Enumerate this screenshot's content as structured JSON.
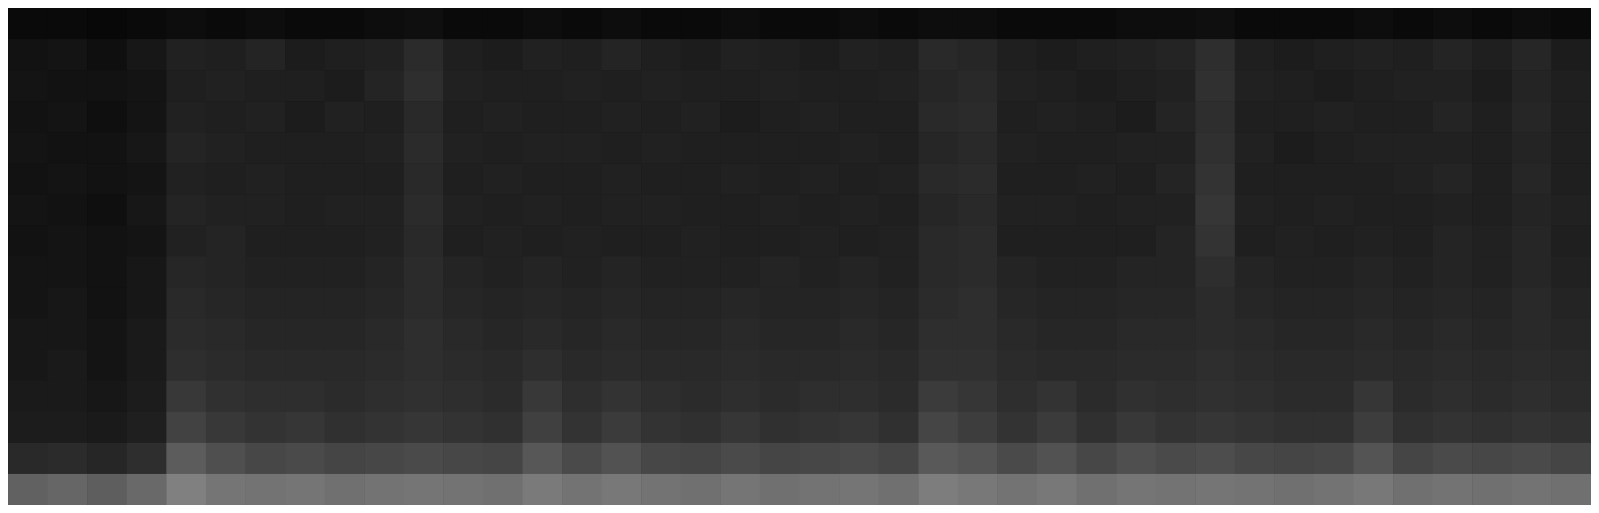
{
  "chart_data": {
    "type": "heatmap",
    "tick_labels": false,
    "zlim": [
      0,
      1
    ],
    "cells": [
      [
        0.04,
        0.04,
        0.03,
        0.04,
        0.05,
        0.04,
        0.05,
        0.04,
        0.04,
        0.05,
        0.06,
        0.04,
        0.04,
        0.05,
        0.04,
        0.05,
        0.04,
        0.04,
        0.05,
        0.04,
        0.04,
        0.05,
        0.04,
        0.05,
        0.05,
        0.04,
        0.04,
        0.04,
        0.05,
        0.05,
        0.06,
        0.04,
        0.04,
        0.04,
        0.05,
        0.04,
        0.05,
        0.04,
        0.05,
        0.04
      ],
      [
        0.07,
        0.08,
        0.06,
        0.09,
        0.13,
        0.12,
        0.14,
        0.11,
        0.12,
        0.13,
        0.17,
        0.12,
        0.11,
        0.13,
        0.12,
        0.14,
        0.12,
        0.11,
        0.13,
        0.12,
        0.11,
        0.13,
        0.12,
        0.16,
        0.15,
        0.12,
        0.11,
        0.12,
        0.13,
        0.14,
        0.18,
        0.12,
        0.11,
        0.12,
        0.13,
        0.12,
        0.14,
        0.12,
        0.15,
        0.11
      ],
      [
        0.08,
        0.07,
        0.07,
        0.08,
        0.12,
        0.13,
        0.12,
        0.12,
        0.11,
        0.14,
        0.18,
        0.13,
        0.12,
        0.12,
        0.13,
        0.12,
        0.13,
        0.12,
        0.12,
        0.13,
        0.12,
        0.12,
        0.13,
        0.15,
        0.16,
        0.13,
        0.12,
        0.11,
        0.12,
        0.13,
        0.19,
        0.13,
        0.12,
        0.11,
        0.12,
        0.13,
        0.13,
        0.11,
        0.14,
        0.12
      ],
      [
        0.07,
        0.08,
        0.06,
        0.08,
        0.13,
        0.12,
        0.13,
        0.11,
        0.13,
        0.12,
        0.16,
        0.12,
        0.13,
        0.12,
        0.12,
        0.13,
        0.12,
        0.13,
        0.11,
        0.12,
        0.13,
        0.12,
        0.12,
        0.16,
        0.17,
        0.12,
        0.13,
        0.12,
        0.11,
        0.14,
        0.18,
        0.12,
        0.12,
        0.13,
        0.12,
        0.12,
        0.14,
        0.12,
        0.15,
        0.12
      ],
      [
        0.08,
        0.07,
        0.07,
        0.09,
        0.14,
        0.13,
        0.12,
        0.12,
        0.12,
        0.13,
        0.17,
        0.13,
        0.12,
        0.13,
        0.13,
        0.12,
        0.13,
        0.12,
        0.12,
        0.12,
        0.12,
        0.13,
        0.12,
        0.15,
        0.16,
        0.13,
        0.12,
        0.12,
        0.13,
        0.13,
        0.19,
        0.13,
        0.11,
        0.12,
        0.13,
        0.13,
        0.13,
        0.12,
        0.14,
        0.12
      ],
      [
        0.07,
        0.08,
        0.07,
        0.08,
        0.13,
        0.12,
        0.13,
        0.12,
        0.12,
        0.12,
        0.16,
        0.12,
        0.13,
        0.12,
        0.12,
        0.13,
        0.12,
        0.12,
        0.13,
        0.12,
        0.13,
        0.12,
        0.13,
        0.16,
        0.17,
        0.12,
        0.12,
        0.13,
        0.12,
        0.14,
        0.2,
        0.12,
        0.12,
        0.12,
        0.12,
        0.13,
        0.14,
        0.12,
        0.15,
        0.12
      ],
      [
        0.08,
        0.07,
        0.06,
        0.09,
        0.14,
        0.13,
        0.13,
        0.12,
        0.13,
        0.13,
        0.17,
        0.13,
        0.12,
        0.13,
        0.12,
        0.13,
        0.13,
        0.12,
        0.12,
        0.13,
        0.12,
        0.13,
        0.12,
        0.15,
        0.16,
        0.13,
        0.13,
        0.12,
        0.13,
        0.13,
        0.21,
        0.13,
        0.12,
        0.13,
        0.12,
        0.12,
        0.13,
        0.12,
        0.14,
        0.13
      ],
      [
        0.07,
        0.08,
        0.07,
        0.08,
        0.13,
        0.14,
        0.12,
        0.12,
        0.12,
        0.13,
        0.16,
        0.12,
        0.13,
        0.12,
        0.13,
        0.12,
        0.12,
        0.13,
        0.12,
        0.12,
        0.13,
        0.12,
        0.13,
        0.16,
        0.17,
        0.12,
        0.12,
        0.12,
        0.12,
        0.14,
        0.2,
        0.12,
        0.13,
        0.12,
        0.13,
        0.12,
        0.14,
        0.13,
        0.15,
        0.12
      ],
      [
        0.08,
        0.08,
        0.07,
        0.09,
        0.15,
        0.14,
        0.13,
        0.13,
        0.13,
        0.14,
        0.17,
        0.14,
        0.13,
        0.14,
        0.13,
        0.14,
        0.13,
        0.13,
        0.13,
        0.14,
        0.13,
        0.14,
        0.13,
        0.16,
        0.17,
        0.14,
        0.13,
        0.13,
        0.14,
        0.14,
        0.18,
        0.14,
        0.13,
        0.13,
        0.14,
        0.13,
        0.14,
        0.13,
        0.15,
        0.13
      ],
      [
        0.08,
        0.09,
        0.07,
        0.09,
        0.16,
        0.15,
        0.14,
        0.14,
        0.14,
        0.15,
        0.17,
        0.15,
        0.14,
        0.15,
        0.14,
        0.15,
        0.14,
        0.14,
        0.15,
        0.14,
        0.14,
        0.15,
        0.14,
        0.17,
        0.18,
        0.15,
        0.14,
        0.14,
        0.15,
        0.15,
        0.17,
        0.15,
        0.14,
        0.14,
        0.15,
        0.14,
        0.15,
        0.14,
        0.16,
        0.14
      ],
      [
        0.09,
        0.09,
        0.08,
        0.1,
        0.17,
        0.16,
        0.15,
        0.15,
        0.15,
        0.16,
        0.18,
        0.16,
        0.15,
        0.16,
        0.15,
        0.16,
        0.15,
        0.15,
        0.16,
        0.15,
        0.15,
        0.16,
        0.15,
        0.18,
        0.18,
        0.16,
        0.15,
        0.15,
        0.16,
        0.16,
        0.17,
        0.16,
        0.15,
        0.15,
        0.16,
        0.15,
        0.16,
        0.15,
        0.16,
        0.15
      ],
      [
        0.09,
        0.1,
        0.08,
        0.1,
        0.18,
        0.17,
        0.16,
        0.16,
        0.16,
        0.17,
        0.18,
        0.17,
        0.16,
        0.18,
        0.16,
        0.17,
        0.16,
        0.16,
        0.17,
        0.16,
        0.16,
        0.17,
        0.16,
        0.19,
        0.19,
        0.17,
        0.16,
        0.16,
        0.17,
        0.17,
        0.18,
        0.17,
        0.16,
        0.16,
        0.17,
        0.16,
        0.17,
        0.16,
        0.17,
        0.16
      ],
      [
        0.1,
        0.1,
        0.09,
        0.11,
        0.22,
        0.19,
        0.18,
        0.18,
        0.17,
        0.18,
        0.19,
        0.18,
        0.17,
        0.22,
        0.18,
        0.2,
        0.18,
        0.17,
        0.18,
        0.17,
        0.18,
        0.18,
        0.17,
        0.23,
        0.21,
        0.18,
        0.2,
        0.17,
        0.19,
        0.18,
        0.19,
        0.18,
        0.17,
        0.17,
        0.21,
        0.17,
        0.18,
        0.17,
        0.18,
        0.17
      ],
      [
        0.11,
        0.11,
        0.1,
        0.12,
        0.26,
        0.22,
        0.2,
        0.21,
        0.19,
        0.2,
        0.21,
        0.2,
        0.19,
        0.25,
        0.2,
        0.23,
        0.2,
        0.19,
        0.21,
        0.19,
        0.2,
        0.21,
        0.19,
        0.27,
        0.24,
        0.2,
        0.23,
        0.19,
        0.22,
        0.2,
        0.21,
        0.2,
        0.19,
        0.19,
        0.24,
        0.19,
        0.2,
        0.19,
        0.2,
        0.19
      ],
      [
        0.16,
        0.17,
        0.15,
        0.18,
        0.36,
        0.31,
        0.28,
        0.29,
        0.27,
        0.28,
        0.29,
        0.28,
        0.27,
        0.34,
        0.29,
        0.32,
        0.28,
        0.27,
        0.29,
        0.27,
        0.28,
        0.29,
        0.27,
        0.35,
        0.33,
        0.29,
        0.32,
        0.28,
        0.31,
        0.29,
        0.3,
        0.28,
        0.27,
        0.28,
        0.33,
        0.27,
        0.29,
        0.28,
        0.29,
        0.27
      ],
      [
        0.38,
        0.4,
        0.37,
        0.41,
        0.5,
        0.46,
        0.45,
        0.46,
        0.44,
        0.45,
        0.46,
        0.45,
        0.44,
        0.48,
        0.45,
        0.47,
        0.45,
        0.44,
        0.46,
        0.44,
        0.45,
        0.46,
        0.44,
        0.49,
        0.47,
        0.45,
        0.47,
        0.44,
        0.46,
        0.45,
        0.46,
        0.45,
        0.44,
        0.45,
        0.47,
        0.44,
        0.45,
        0.44,
        0.45,
        0.44
      ]
    ]
  }
}
